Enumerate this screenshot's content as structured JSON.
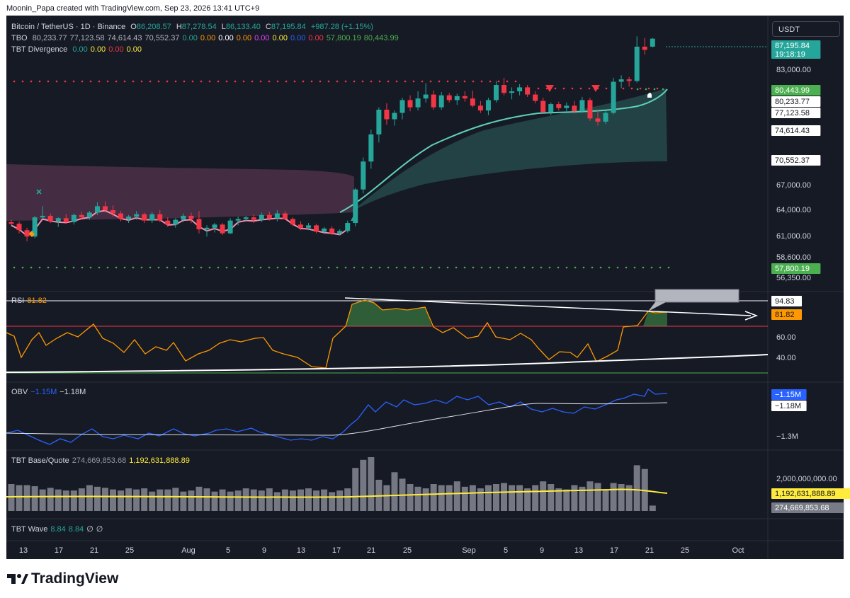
{
  "header": {
    "credit": "Moonin_Papa created with TradingView.com, Sep 23, 2026 13:41 UTC+9"
  },
  "symbol": {
    "title": "Bitcoin / TetherUS · 1D · Binance",
    "o_label": "O",
    "o": "86,208.57",
    "h_label": "H",
    "h": "87,278.54",
    "l_label": "L",
    "l": "86,133.40",
    "c_label": "C",
    "c": "87,195.84",
    "change": "+987.28 (+1.15%)"
  },
  "currency_button": "USDT",
  "legends": {
    "tbo": {
      "name": "TBO",
      "values": [
        "80,233.77",
        "77,123.58",
        "74,614.43",
        "70,552.37",
        "0.00",
        "0.00",
        "0.00",
        "0.00",
        "0.00",
        "0.00",
        "0.00",
        "0.00",
        "57,800.19",
        "80,443.99"
      ],
      "colors": [
        "#b2b5be",
        "#b2b5be",
        "#b2b5be",
        "#b2b5be",
        "#26a69a",
        "#ff9800",
        "#ffffff",
        "#ff9800",
        "#e040fb",
        "#ffeb3b",
        "#2962ff",
        "#f23645",
        "#4caf50",
        "#4caf50"
      ]
    },
    "tbt_div": {
      "name": "TBT Divergence",
      "values": [
        "0.00",
        "0.00",
        "0.00",
        "0.00"
      ],
      "colors": [
        "#26a69a",
        "#ffeb3b",
        "#f23645",
        "#ffeb3b"
      ]
    },
    "rsi": {
      "name": "RSI",
      "value": "81.82"
    },
    "obv": {
      "name": "OBV",
      "v1": "−1.15M",
      "v2": "−1.18M"
    },
    "basequote": {
      "name": "TBT Base/Quote",
      "v1": "274,669,853.68",
      "v2": "1,192,631,888.89"
    },
    "wave": {
      "name": "TBT Wave",
      "v1": "8.84",
      "v2": "8.84",
      "v3": "∅",
      "v4": "∅"
    }
  },
  "axis_labels": {
    "price": [
      "83,000.00",
      "67,000.00",
      "64,000.00",
      "61,000.00",
      "58,600.00",
      "56,350.00"
    ],
    "rsi": [
      "60.00",
      "40.00"
    ],
    "obv": [
      "−1.3M"
    ],
    "volume": [
      "2,000,000,000.00"
    ]
  },
  "price_tags": [
    {
      "text": "87,195.84",
      "sub": "19:18:19",
      "bg": "#26a69a",
      "fg": "#ffffff"
    },
    {
      "text": "80,443.99",
      "bg": "#4caf50",
      "fg": "#ffffff"
    },
    {
      "text": "80,233.77",
      "bg": "#ffffff",
      "fg": "#131722"
    },
    {
      "text": "77,123.58",
      "bg": "#ffffff",
      "fg": "#131722"
    },
    {
      "text": "74,614.43",
      "bg": "#ffffff",
      "fg": "#131722"
    },
    {
      "text": "70,552.37",
      "bg": "#ffffff",
      "fg": "#131722"
    },
    {
      "text": "57,800.19",
      "bg": "#4caf50",
      "fg": "#ffffff"
    },
    {
      "text": "94.83",
      "bg": "#ffffff",
      "fg": "#131722"
    },
    {
      "text": "81.82",
      "bg": "#ff9800",
      "fg": "#131722"
    },
    {
      "text": "−1.15M",
      "bg": "#2962ff",
      "fg": "#ffffff"
    },
    {
      "text": "−1.18M",
      "bg": "#ffffff",
      "fg": "#131722"
    },
    {
      "text": "1,192,631,888.89",
      "bg": "#ffeb3b",
      "fg": "#131722"
    },
    {
      "text": "274,669,853.68",
      "bg": "#787b86",
      "fg": "#ffffff"
    }
  ],
  "x_axis": [
    "13",
    "17",
    "21",
    "25",
    "Aug",
    "5",
    "9",
    "13",
    "17",
    "21",
    "25",
    "Sep",
    "5",
    "9",
    "13",
    "17",
    "21",
    "25",
    "Oct"
  ],
  "brand": "TradingView",
  "colors": {
    "up": "#26a69a",
    "down": "#f23645",
    "bg": "#161a25",
    "ma": "#f48fb1",
    "teal_line": "#5fd0b8",
    "rsi": "#ff9800",
    "obv": "#2962ff",
    "volume_ma": "#ffeb3b"
  },
  "chart_data": {
    "type": "candlestick",
    "symbol": "Bitcoin / TetherUS · 1D · Binance",
    "ylim": [
      55500,
      88500
    ],
    "ohlc": [
      [
        64200,
        64500,
        63800,
        64000
      ],
      [
        64000,
        64300,
        62800,
        63200
      ],
      [
        63200,
        63500,
        61800,
        62400
      ],
      [
        62400,
        65000,
        62200,
        64800
      ],
      [
        64800,
        66200,
        64500,
        65000
      ],
      [
        65000,
        65300,
        64100,
        64300
      ],
      [
        64300,
        64800,
        63600,
        64700
      ],
      [
        64700,
        65200,
        64000,
        64200
      ],
      [
        64200,
        65300,
        63900,
        65100
      ],
      [
        65100,
        65500,
        64500,
        64800
      ],
      [
        64800,
        65600,
        64500,
        65400
      ],
      [
        65400,
        66700,
        65100,
        66200
      ],
      [
        66200,
        66800,
        65400,
        65700
      ],
      [
        65700,
        66300,
        64900,
        65300
      ],
      [
        65300,
        65600,
        64300,
        64600
      ],
      [
        64600,
        65100,
        64100,
        64900
      ],
      [
        64900,
        65600,
        64500,
        65200
      ],
      [
        65200,
        65400,
        64100,
        64400
      ],
      [
        64400,
        65500,
        64100,
        65200
      ],
      [
        65200,
        65700,
        64200,
        64400
      ],
      [
        64400,
        64800,
        63600,
        63900
      ],
      [
        63900,
        64700,
        63500,
        64500
      ],
      [
        64500,
        65300,
        64200,
        65000
      ],
      [
        65000,
        65400,
        64100,
        64600
      ],
      [
        64600,
        65600,
        62800,
        63300
      ],
      [
        63300,
        63800,
        62400,
        63500
      ],
      [
        63500,
        64100,
        62900,
        63900
      ],
      [
        63900,
        64100,
        62600,
        62800
      ],
      [
        62800,
        64700,
        62700,
        64400
      ],
      [
        64400,
        64900,
        63800,
        64600
      ],
      [
        64600,
        65000,
        64300,
        64800
      ],
      [
        64800,
        65200,
        64100,
        64500
      ],
      [
        64500,
        65400,
        64200,
        65100
      ],
      [
        65100,
        65500,
        64400,
        64700
      ],
      [
        64700,
        65700,
        64300,
        65300
      ],
      [
        65300,
        65600,
        64500,
        64600
      ],
      [
        64600,
        64800,
        63700,
        63900
      ],
      [
        63900,
        64300,
        63200,
        63500
      ],
      [
        63500,
        64100,
        63200,
        63800
      ],
      [
        63800,
        64000,
        62800,
        63000
      ],
      [
        63000,
        63600,
        62700,
        63400
      ],
      [
        63400,
        63700,
        62600,
        62800
      ],
      [
        62800,
        63300,
        62600,
        63100
      ],
      [
        63100,
        64400,
        62900,
        64100
      ],
      [
        64100,
        68500,
        63700,
        68300
      ],
      [
        68300,
        72300,
        67800,
        71800
      ],
      [
        71800,
        75800,
        70900,
        75200
      ],
      [
        75200,
        78600,
        74200,
        78300
      ],
      [
        78300,
        79100,
        76400,
        77100
      ],
      [
        77100,
        78200,
        76300,
        77900
      ],
      [
        77900,
        79800,
        77100,
        79500
      ],
      [
        79500,
        80100,
        78100,
        78600
      ],
      [
        78600,
        80600,
        78200,
        79700
      ],
      [
        79700,
        81600,
        79200,
        80200
      ],
      [
        80200,
        80700,
        78300,
        78600
      ],
      [
        78600,
        80500,
        78300,
        80100
      ],
      [
        80100,
        80400,
        79200,
        79500
      ],
      [
        79500,
        80300,
        78900,
        80000
      ],
      [
        80000,
        80600,
        79300,
        79700
      ],
      [
        79700,
        80700,
        78600,
        78800
      ],
      [
        78800,
        79400,
        77900,
        78200
      ],
      [
        78200,
        79800,
        77600,
        79500
      ],
      [
        79500,
        81900,
        79200,
        81400
      ],
      [
        81400,
        82300,
        80100,
        80400
      ],
      [
        80400,
        81100,
        79600,
        80600
      ],
      [
        80600,
        81500,
        80100,
        81100
      ],
      [
        81100,
        81400,
        79900,
        80200
      ],
      [
        80200,
        80600,
        79100,
        79400
      ],
      [
        79400,
        79800,
        77900,
        78000
      ],
      [
        78000,
        79200,
        77600,
        79000
      ],
      [
        79000,
        79300,
        78200,
        78500
      ],
      [
        78500,
        79200,
        78100,
        78800
      ],
      [
        78800,
        79400,
        77800,
        78100
      ],
      [
        78100,
        79900,
        77900,
        79500
      ],
      [
        79500,
        79800,
        76900,
        77200
      ],
      [
        77200,
        78200,
        76300,
        76800
      ],
      [
        76800,
        78100,
        76500,
        77900
      ],
      [
        77900,
        82300,
        77700,
        81800
      ],
      [
        81800,
        82600,
        81000,
        82100
      ],
      [
        82100,
        82400,
        81200,
        81900
      ],
      [
        81900,
        87500,
        81700,
        86200
      ],
      [
        86200,
        87300,
        85200,
        85800
      ],
      [
        86200,
        87300,
        86100,
        87200
      ]
    ],
    "rsi": {
      "value": 81.82,
      "levels": [
        70,
        30
      ],
      "ticks": [
        "60.00",
        "40.00"
      ]
    },
    "obv": {
      "v1": -1.15,
      "v2": -1.18,
      "unit": "M"
    },
    "volume": {
      "ma": 1192631888.89,
      "last": 274669853.68
    }
  }
}
